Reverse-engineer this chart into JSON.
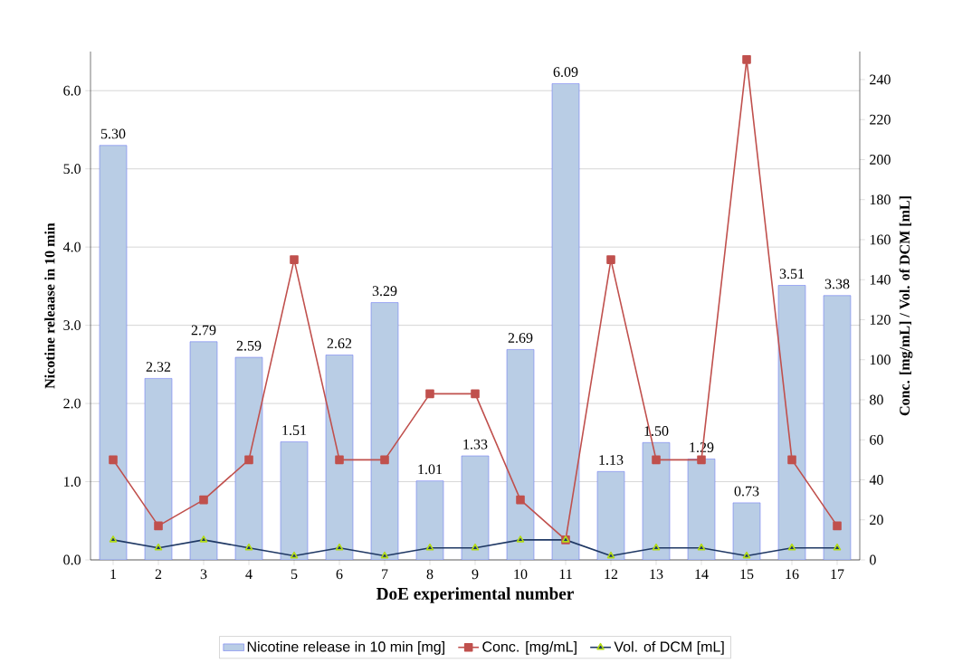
{
  "chart_data": {
    "type": "bar",
    "xlabel": "DoE experimental number",
    "ylabel": "Nicotine releaase in  10 min",
    "y2label": "Conc. [mg/mL] / Vol. of DCM [mL]",
    "categories": [
      "1",
      "2",
      "3",
      "4",
      "5",
      "6",
      "7",
      "8",
      "9",
      "10",
      "11",
      "12",
      "13",
      "14",
      "15",
      "16",
      "17"
    ],
    "series": [
      {
        "name": "Nicotine release in 10 min [mg]",
        "color": "#b9cde5",
        "values": [
          5.3,
          2.32,
          2.79,
          2.59,
          1.51,
          2.62,
          3.29,
          1.01,
          1.33,
          2.69,
          6.09,
          1.13,
          1.5,
          1.29,
          0.73,
          3.51,
          3.38
        ],
        "value_labels": [
          "5.30",
          "2.32",
          "2.79",
          "2.59",
          "1.51",
          "2.62",
          "3.29",
          "1.01",
          "1.33",
          "2.69",
          "6.09",
          "1.13",
          "1.50",
          "1.29",
          "0.73",
          "3.51",
          "3.38"
        ]
      },
      {
        "name": "Conc. [mg/mL]",
        "type": "line",
        "axis": "y2",
        "marker": "square",
        "color": "#c0504d",
        "values": [
          50,
          17,
          30,
          50,
          150,
          50,
          50,
          83,
          83,
          30,
          10,
          150,
          50,
          50,
          250,
          50,
          17
        ]
      },
      {
        "name": "Vol. of DCM [mL]",
        "type": "line",
        "axis": "y2",
        "marker": "triangle",
        "color": "#1f3864",
        "values": [
          10,
          6,
          10,
          6,
          2,
          6,
          2,
          6,
          6,
          10,
          10,
          2,
          6,
          6,
          2,
          6,
          6
        ]
      }
    ],
    "ylim": [
      0,
      6.5
    ],
    "yticks": [
      {
        "value": 0,
        "label": "0.0"
      },
      {
        "value": 1,
        "label": "1.0"
      },
      {
        "value": 2,
        "label": "2.0"
      },
      {
        "value": 3,
        "label": "3.0"
      },
      {
        "value": 4,
        "label": "4.0"
      },
      {
        "value": 5,
        "label": "5.0"
      },
      {
        "value": 6,
        "label": "6.0"
      }
    ],
    "y2lim": [
      0,
      254
    ],
    "y2ticks": [
      0,
      20,
      40,
      60,
      80,
      100,
      120,
      140,
      160,
      180,
      200,
      220,
      240
    ],
    "grid": "y",
    "legend": "bottom"
  }
}
